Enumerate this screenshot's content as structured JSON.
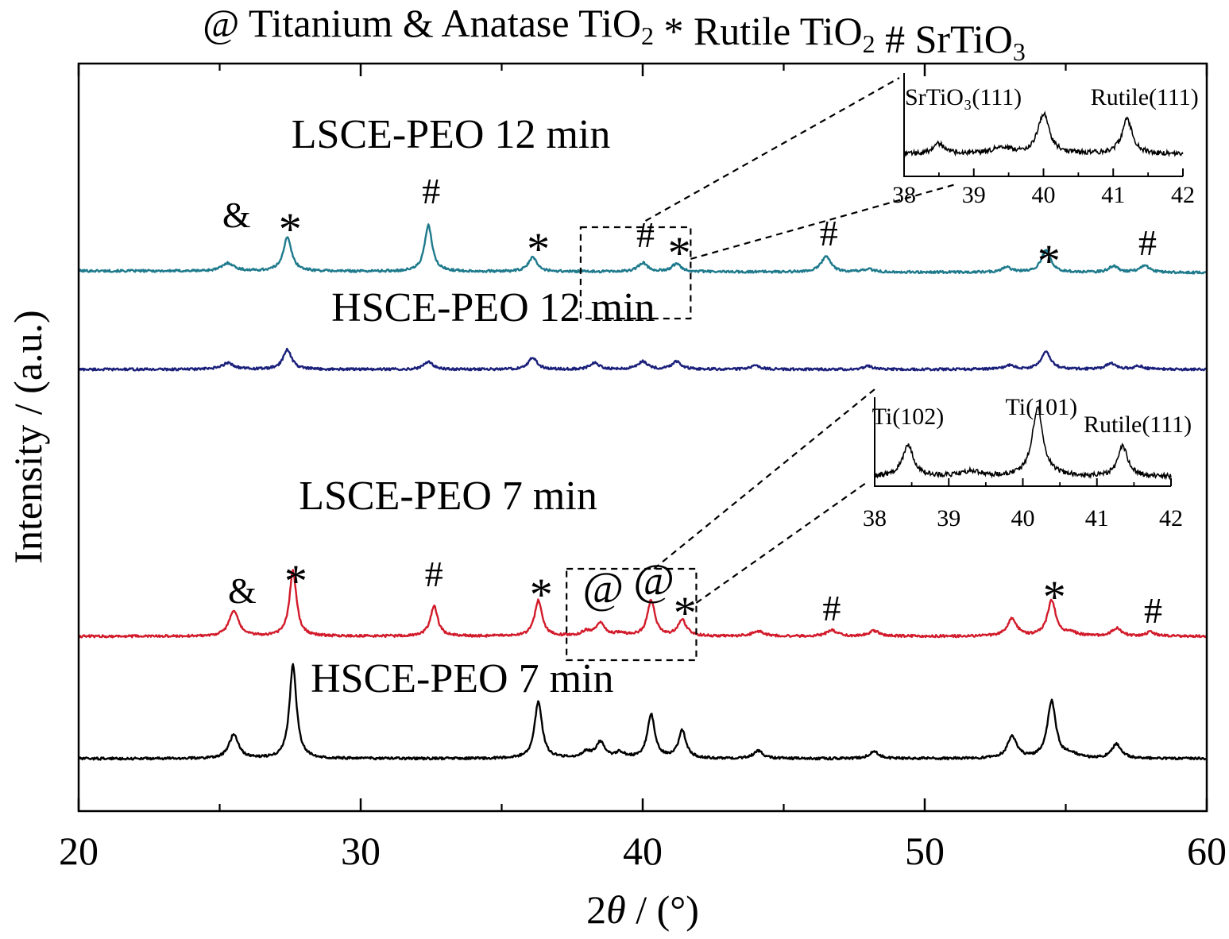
{
  "legend": {
    "items": [
      {
        "symbol": "@",
        "label": "Titanium"
      },
      {
        "symbol": "&",
        "label": "Anatase TiO",
        "sub": "2"
      },
      {
        "symbol": "*",
        "label": "Rutile TiO",
        "sub": "2"
      },
      {
        "symbol": "#",
        "label": "SrTiO",
        "sub": "3"
      }
    ]
  },
  "chart_data": {
    "type": "line",
    "xlabel": "2θ / (°)",
    "ylabel": "Intensity / (a.u.)",
    "xlim": [
      20,
      60
    ],
    "xticks": [
      20,
      30,
      40,
      50,
      60
    ],
    "minor_xticks": [
      25,
      35,
      45,
      55
    ],
    "y_ticks_shown": false,
    "series": [
      {
        "name": "LSCE-PEO 12 min",
        "color": "#1e7a8c",
        "offset": 680,
        "slope": -2.2,
        "peaks": [
          {
            "x": 25.3,
            "h": 10,
            "w": 0.25
          },
          {
            "x": 27.4,
            "h": 42,
            "w": 0.18
          },
          {
            "x": 32.4,
            "h": 58,
            "w": 0.16
          },
          {
            "x": 36.1,
            "h": 18,
            "w": 0.18
          },
          {
            "x": 40.0,
            "h": 11,
            "w": 0.2
          },
          {
            "x": 41.2,
            "h": 10,
            "w": 0.2
          },
          {
            "x": 46.5,
            "h": 20,
            "w": 0.2
          },
          {
            "x": 48.0,
            "h": 4,
            "w": 0.2
          },
          {
            "x": 52.9,
            "h": 6,
            "w": 0.2
          },
          {
            "x": 54.3,
            "h": 28,
            "w": 0.2
          },
          {
            "x": 56.7,
            "h": 8,
            "w": 0.2
          },
          {
            "x": 57.8,
            "h": 9,
            "w": 0.2
          }
        ],
        "markers": [
          {
            "symbol": "&",
            "x": 25.6,
            "y": 735
          },
          {
            "symbol": "*",
            "x": 27.5,
            "y": 735
          },
          {
            "symbol": "#",
            "x": 32.5,
            "y": 765
          },
          {
            "symbol": "*",
            "x": 36.3,
            "y": 710
          },
          {
            "symbol": "#",
            "x": 40.1,
            "y": 710
          },
          {
            "symbol": "*",
            "x": 41.3,
            "y": 705
          },
          {
            "symbol": "#",
            "x": 46.6,
            "y": 712
          },
          {
            "symbol": "*",
            "x": 54.4,
            "y": 695
          },
          {
            "symbol": "#",
            "x": 57.9,
            "y": 700
          }
        ]
      },
      {
        "name": "HSCE-PEO 12 min",
        "color": "#1a1f7a",
        "offset": 556,
        "slope": 0,
        "peaks": [
          {
            "x": 25.3,
            "h": 8,
            "w": 0.25
          },
          {
            "x": 27.4,
            "h": 25,
            "w": 0.18
          },
          {
            "x": 32.4,
            "h": 10,
            "w": 0.18
          },
          {
            "x": 36.1,
            "h": 15,
            "w": 0.18
          },
          {
            "x": 38.3,
            "h": 8,
            "w": 0.2
          },
          {
            "x": 40.0,
            "h": 10,
            "w": 0.2
          },
          {
            "x": 41.2,
            "h": 10,
            "w": 0.2
          },
          {
            "x": 44.0,
            "h": 4,
            "w": 0.25
          },
          {
            "x": 48.0,
            "h": 4,
            "w": 0.2
          },
          {
            "x": 53.0,
            "h": 5,
            "w": 0.2
          },
          {
            "x": 54.3,
            "h": 22,
            "w": 0.2
          },
          {
            "x": 56.6,
            "h": 8,
            "w": 0.2
          },
          {
            "x": 57.6,
            "h": 4,
            "w": 0.2
          }
        ],
        "markers": []
      },
      {
        "name": "LSCE-PEO 7 min",
        "color": "#d21a2a",
        "offset": 220,
        "slope": 0,
        "peaks": [
          {
            "x": 25.5,
            "h": 32,
            "w": 0.2
          },
          {
            "x": 27.6,
            "h": 82,
            "w": 0.15
          },
          {
            "x": 32.6,
            "h": 38,
            "w": 0.16
          },
          {
            "x": 36.3,
            "h": 45,
            "w": 0.16
          },
          {
            "x": 38.0,
            "h": 6,
            "w": 0.2
          },
          {
            "x": 38.5,
            "h": 16,
            "w": 0.18
          },
          {
            "x": 39.2,
            "h": 4,
            "w": 0.2
          },
          {
            "x": 40.3,
            "h": 45,
            "w": 0.16
          },
          {
            "x": 41.4,
            "h": 20,
            "w": 0.18
          },
          {
            "x": 44.1,
            "h": 6,
            "w": 0.25
          },
          {
            "x": 46.7,
            "h": 8,
            "w": 0.2
          },
          {
            "x": 48.2,
            "h": 7,
            "w": 0.2
          },
          {
            "x": 53.1,
            "h": 22,
            "w": 0.2
          },
          {
            "x": 54.5,
            "h": 45,
            "w": 0.18
          },
          {
            "x": 55.2,
            "h": 4,
            "w": 0.25
          },
          {
            "x": 56.8,
            "h": 10,
            "w": 0.2
          },
          {
            "x": 58.0,
            "h": 5,
            "w": 0.2
          }
        ],
        "markers": [
          {
            "symbol": "&",
            "x": 25.8,
            "y": 262
          },
          {
            "symbol": "*",
            "x": 27.7,
            "y": 292
          },
          {
            "symbol": "#",
            "x": 32.6,
            "y": 283
          },
          {
            "symbol": "*",
            "x": 36.4,
            "y": 275
          },
          {
            "symbol": "@",
            "x": 38.6,
            "y": 262
          },
          {
            "symbol": "@",
            "x": 40.4,
            "y": 272
          },
          {
            "symbol": "*",
            "x": 41.5,
            "y": 252
          },
          {
            "symbol": "#",
            "x": 46.7,
            "y": 240
          },
          {
            "symbol": "*",
            "x": 54.6,
            "y": 272
          },
          {
            "symbol": "#",
            "x": 58.1,
            "y": 237
          }
        ]
      },
      {
        "name": "HSCE-PEO 7 min",
        "color": "#000000",
        "offset": 66,
        "slope": 0,
        "peaks": [
          {
            "x": 25.5,
            "h": 30,
            "w": 0.2
          },
          {
            "x": 27.6,
            "h": 118,
            "w": 0.15
          },
          {
            "x": 36.3,
            "h": 72,
            "w": 0.16
          },
          {
            "x": 38.0,
            "h": 8,
            "w": 0.2
          },
          {
            "x": 38.5,
            "h": 20,
            "w": 0.18
          },
          {
            "x": 39.2,
            "h": 7,
            "w": 0.2
          },
          {
            "x": 40.3,
            "h": 55,
            "w": 0.16
          },
          {
            "x": 41.4,
            "h": 35,
            "w": 0.16
          },
          {
            "x": 44.1,
            "h": 10,
            "w": 0.2
          },
          {
            "x": 48.2,
            "h": 9,
            "w": 0.2
          },
          {
            "x": 53.1,
            "h": 28,
            "w": 0.2
          },
          {
            "x": 54.5,
            "h": 72,
            "w": 0.18
          },
          {
            "x": 55.2,
            "h": 5,
            "w": 0.25
          },
          {
            "x": 56.8,
            "h": 18,
            "w": 0.2
          }
        ],
        "markers": []
      }
    ],
    "series_labels": [
      {
        "text": "LSCE-PEO 12 min",
        "x": 33.2,
        "y": 835
      },
      {
        "text": "HSCE-PEO 12 min",
        "x": 34.7,
        "y": 617
      },
      {
        "text": "LSCE-PEO 7 min",
        "x": 33.1,
        "y": 380
      },
      {
        "text": "HSCE-PEO 7 min",
        "x": 33.6,
        "y": 150
      }
    ],
    "zoom_boxes": [
      {
        "x0": 37.8,
        "x1": 41.7,
        "y_bottom": 620,
        "y_top": 735
      },
      {
        "x0": 37.3,
        "x1": 41.9,
        "y_bottom": 190,
        "y_top": 305
      }
    ],
    "insets": [
      {
        "xlim": [
          38,
          42
        ],
        "xticks": [
          38,
          39,
          40,
          41,
          42
        ],
        "annotations": [
          {
            "text": "SrTiO₃(111)",
            "x": 38.85,
            "y": 90
          },
          {
            "text": "Rutile(111)",
            "x": 41.45,
            "y": 90
          }
        ],
        "peaks": [
          {
            "x": 38.5,
            "h": 0.18,
            "w": 0.1
          },
          {
            "x": 39.4,
            "h": 0.12,
            "w": 0.15
          },
          {
            "x": 40.0,
            "h": 0.72,
            "w": 0.1
          },
          {
            "x": 41.2,
            "h": 0.62,
            "w": 0.09
          }
        ]
      },
      {
        "xlim": [
          38,
          42
        ],
        "xticks": [
          38,
          39,
          40,
          41,
          42
        ],
        "annotations": [
          {
            "text": "Ti(102)",
            "x": 38.45,
            "y": 78
          },
          {
            "text": "Ti(101)",
            "x": 40.25,
            "y": 90
          },
          {
            "text": "Rutile(111)",
            "x": 41.55,
            "y": 68
          }
        ],
        "peaks": [
          {
            "x": 38.45,
            "h": 0.42,
            "w": 0.09
          },
          {
            "x": 39.3,
            "h": 0.07,
            "w": 0.15
          },
          {
            "x": 40.2,
            "h": 0.9,
            "w": 0.09
          },
          {
            "x": 41.35,
            "h": 0.4,
            "w": 0.08
          }
        ]
      }
    ]
  }
}
